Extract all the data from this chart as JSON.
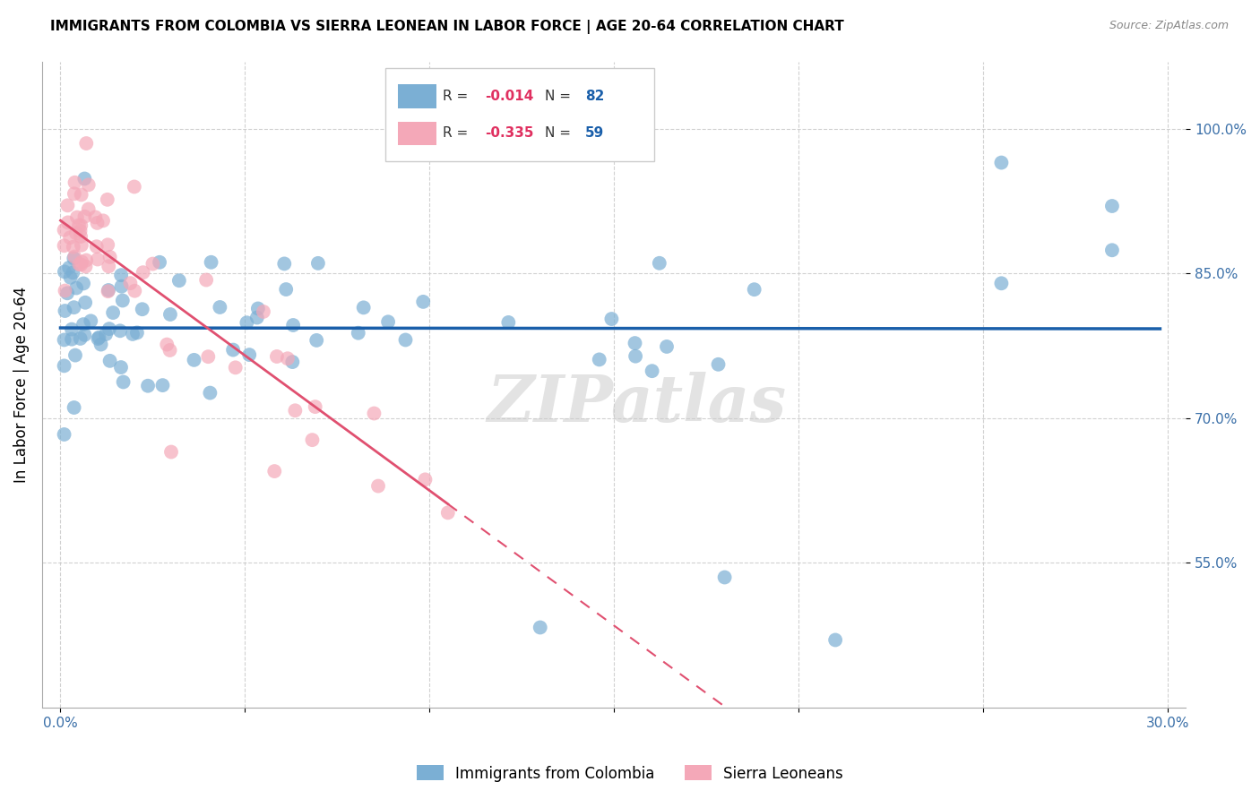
{
  "title": "IMMIGRANTS FROM COLOMBIA VS SIERRA LEONEAN IN LABOR FORCE | AGE 20-64 CORRELATION CHART",
  "source": "Source: ZipAtlas.com",
  "ylabel_label": "In Labor Force | Age 20-64",
  "xlim": [
    -0.005,
    0.305
  ],
  "ylim": [
    0.4,
    1.07
  ],
  "xticks": [
    0.0,
    0.05,
    0.1,
    0.15,
    0.2,
    0.25,
    0.3
  ],
  "xticklabels": [
    "0.0%",
    "",
    "",
    "",
    "",
    "",
    "30.0%"
  ],
  "yticks": [
    0.55,
    0.7,
    0.85,
    1.0
  ],
  "yticklabels": [
    "55.0%",
    "70.0%",
    "85.0%",
    "100.0%"
  ],
  "colombia_color": "#7bafd4",
  "sierra_leone_color": "#f4a8b8",
  "trend_colombia_color": "#1a5faa",
  "trend_sierra_color": "#e05070",
  "legend_R_colombia": "-0.014",
  "legend_N_colombia": "82",
  "legend_R_sierra": "-0.335",
  "legend_N_sierra": "59",
  "colombia_label": "Immigrants from Colombia",
  "sierra_label": "Sierra Leoneans",
  "watermark": "ZIPatlas"
}
